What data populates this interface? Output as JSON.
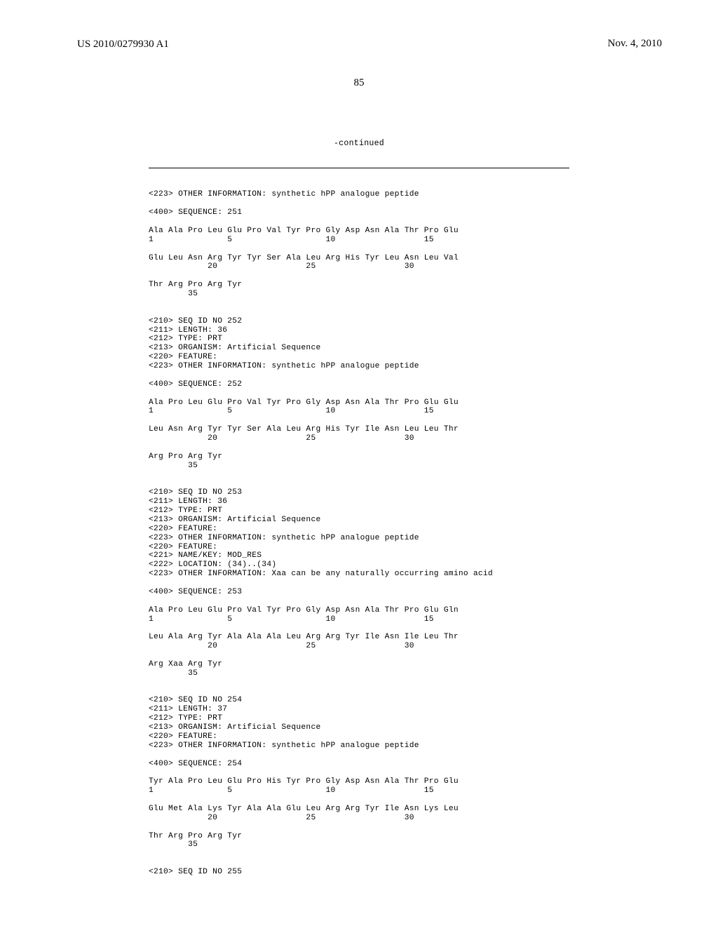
{
  "header": {
    "publication_id": "US 2010/0279930 A1",
    "publication_date": "Nov. 4, 2010"
  },
  "page_number": "85",
  "continued_label": "-continued",
  "blocks": [
    "<223> OTHER INFORMATION: synthetic hPP analogue peptide",
    "",
    "<400> SEQUENCE: 251",
    "",
    "Ala Ala Pro Leu Glu Pro Val Tyr Pro Gly Asp Asn Ala Thr Pro Glu",
    "1               5                   10                  15",
    "",
    "Glu Leu Asn Arg Tyr Tyr Ser Ala Leu Arg His Tyr Leu Asn Leu Val",
    "            20                  25                  30",
    "",
    "Thr Arg Pro Arg Tyr",
    "        35",
    "",
    "",
    "<210> SEQ ID NO 252",
    "<211> LENGTH: 36",
    "<212> TYPE: PRT",
    "<213> ORGANISM: Artificial Sequence",
    "<220> FEATURE:",
    "<223> OTHER INFORMATION: synthetic hPP analogue peptide",
    "",
    "<400> SEQUENCE: 252",
    "",
    "Ala Pro Leu Glu Pro Val Tyr Pro Gly Asp Asn Ala Thr Pro Glu Glu",
    "1               5                   10                  15",
    "",
    "Leu Asn Arg Tyr Tyr Ser Ala Leu Arg His Tyr Ile Asn Leu Leu Thr",
    "            20                  25                  30",
    "",
    "Arg Pro Arg Tyr",
    "        35",
    "",
    "",
    "<210> SEQ ID NO 253",
    "<211> LENGTH: 36",
    "<212> TYPE: PRT",
    "<213> ORGANISM: Artificial Sequence",
    "<220> FEATURE:",
    "<223> OTHER INFORMATION: synthetic hPP analogue peptide",
    "<220> FEATURE:",
    "<221> NAME/KEY: MOD_RES",
    "<222> LOCATION: (34)..(34)",
    "<223> OTHER INFORMATION: Xaa can be any naturally occurring amino acid",
    "",
    "<400> SEQUENCE: 253",
    "",
    "Ala Pro Leu Glu Pro Val Tyr Pro Gly Asp Asn Ala Thr Pro Glu Gln",
    "1               5                   10                  15",
    "",
    "Leu Ala Arg Tyr Ala Ala Ala Leu Arg Arg Tyr Ile Asn Ile Leu Thr",
    "            20                  25                  30",
    "",
    "Arg Xaa Arg Tyr",
    "        35",
    "",
    "",
    "<210> SEQ ID NO 254",
    "<211> LENGTH: 37",
    "<212> TYPE: PRT",
    "<213> ORGANISM: Artificial Sequence",
    "<220> FEATURE:",
    "<223> OTHER INFORMATION: synthetic hPP analogue peptide",
    "",
    "<400> SEQUENCE: 254",
    "",
    "Tyr Ala Pro Leu Glu Pro His Tyr Pro Gly Asp Asn Ala Thr Pro Glu",
    "1               5                   10                  15",
    "",
    "Glu Met Ala Lys Tyr Ala Ala Glu Leu Arg Arg Tyr Ile Asn Lys Leu",
    "            20                  25                  30",
    "",
    "Thr Arg Pro Arg Tyr",
    "        35",
    "",
    "",
    "<210> SEQ ID NO 255"
  ]
}
